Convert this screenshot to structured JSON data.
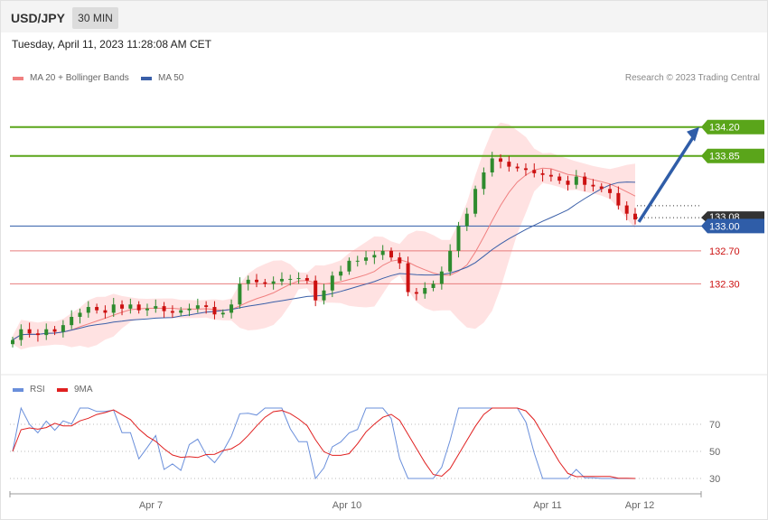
{
  "header": {
    "symbol": "USD/JPY",
    "timeframe": "30 MIN"
  },
  "timestamp": "Tuesday, April 11, 2023 11:28:08 AM CET",
  "legend": {
    "ma20_label": "MA 20 + Bollinger Bands",
    "ma50_label": "MA 50",
    "copyright": "Research © 2023 Trading Central"
  },
  "rsi_legend": {
    "rsi_label": "RSI",
    "ma_label": "9MA"
  },
  "colors": {
    "up": "#2e8b2e",
    "down": "#cc1111",
    "resistance": "#5aa51a",
    "support": "#e87d7d",
    "pivot": "#2f5da8",
    "arrow": "#2f5da8",
    "ma20": "#f08080",
    "ma50": "#3a5fa8",
    "band": "#ffd8d8",
    "rsi": "#6a8fdb",
    "rsi_ma": "#e02020"
  },
  "chart_data": [
    {
      "type": "candlestick",
      "title": "USD/JPY 30 MIN",
      "ylim": [
        131.2,
        134.7
      ],
      "x_tick_labels": [
        "Apr 7",
        "Apr 10",
        "Apr 11",
        "Apr 12"
      ],
      "levels": [
        {
          "value": 134.2,
          "label": "134.20",
          "kind": "resistance"
        },
        {
          "value": 133.85,
          "label": "133.85",
          "kind": "resistance"
        },
        {
          "value": 133.0,
          "label": "133.00",
          "kind": "pivot"
        },
        {
          "value": 132.7,
          "label": "132.70",
          "kind": "support"
        },
        {
          "value": 132.3,
          "label": "132.30",
          "kind": "support"
        }
      ],
      "last_price_tag": "133.08",
      "projection": {
        "from": 133.05,
        "to": 134.2,
        "direction": "up"
      },
      "close_series_approx": [
        131.62,
        131.75,
        131.7,
        131.68,
        131.75,
        131.72,
        131.8,
        131.9,
        131.95,
        132.02,
        131.98,
        131.95,
        132.05,
        132.0,
        132.05,
        131.98,
        132.0,
        132.03,
        131.97,
        131.95,
        131.98,
        132.0,
        132.04,
        132.02,
        131.93,
        131.95,
        132.05,
        132.3,
        132.35,
        132.32,
        132.3,
        132.33,
        132.36,
        132.36,
        132.37,
        132.34,
        132.1,
        132.22,
        132.4,
        132.45,
        132.58,
        132.58,
        132.62,
        132.65,
        132.7,
        132.62,
        132.55,
        132.2,
        132.18,
        132.25,
        132.3,
        132.45,
        132.7,
        133.0,
        133.15,
        133.45,
        133.65,
        133.82,
        133.78,
        133.72,
        133.7,
        133.68,
        133.64,
        133.62,
        133.6,
        133.55,
        133.5,
        133.6,
        133.5,
        133.48,
        133.45,
        133.4,
        133.25,
        133.15,
        133.08
      ],
      "series": [
        {
          "name": "MA 20 + Bollinger Bands"
        },
        {
          "name": "MA 50"
        }
      ]
    },
    {
      "type": "line",
      "title": "",
      "ylim": [
        20,
        90
      ],
      "y_ticks": [
        30,
        50,
        70
      ],
      "series": [
        {
          "name": "RSI"
        },
        {
          "name": "9MA"
        }
      ]
    }
  ]
}
